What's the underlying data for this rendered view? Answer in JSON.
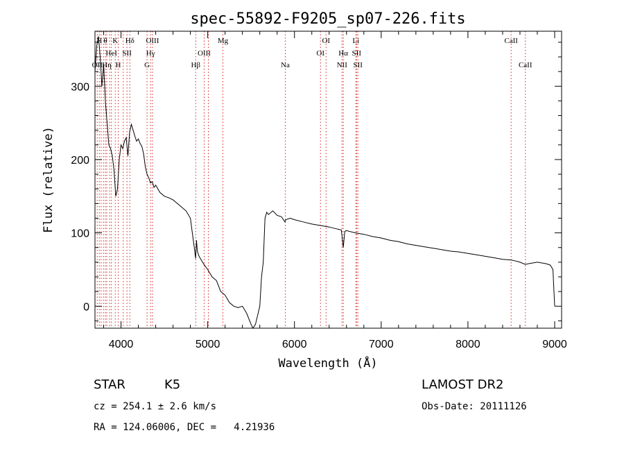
{
  "chart_data": {
    "type": "line",
    "title": "spec-55892-F9205_sp07-226.fits",
    "xlabel": "Wavelength (Å)",
    "ylabel": "Flux (relative)",
    "xlim": [
      3700,
      9080
    ],
    "ylim": [
      -30,
      375
    ],
    "xticks": [
      4000,
      5000,
      6000,
      7000,
      8000,
      9000
    ],
    "yticks": [
      0,
      100,
      200,
      300
    ],
    "grid": false,
    "series": [
      {
        "x": [
          3700,
          3720,
          3740,
          3760,
          3780,
          3800,
          3820,
          3840,
          3860,
          3880,
          3900,
          3920,
          3940,
          3960,
          3980,
          4000,
          4020,
          4040,
          4060,
          4080,
          4100,
          4120,
          4140,
          4160,
          4180,
          4200,
          4220,
          4240,
          4260,
          4280,
          4300,
          4320,
          4340,
          4360,
          4380,
          4400,
          4450,
          4500,
          4550,
          4600,
          4650,
          4700,
          4750,
          4800,
          4850,
          4860,
          4870,
          4880,
          4900,
          4950,
          5000,
          5050,
          5100,
          5150,
          5200,
          5250,
          5300,
          5350,
          5400,
          5450,
          5500,
          5520,
          5550,
          5580,
          5600,
          5620,
          5640,
          5660,
          5680,
          5700,
          5750,
          5800,
          5850,
          5890,
          5900,
          5950,
          6000,
          6100,
          6200,
          6300,
          6400,
          6500,
          6540,
          6563,
          6580,
          6600,
          6700,
          6800,
          6900,
          7000,
          7100,
          7200,
          7300,
          7400,
          7500,
          7600,
          7700,
          7800,
          7900,
          8000,
          8100,
          8200,
          8300,
          8400,
          8500,
          8540,
          8600,
          8662,
          8700,
          8800,
          8900,
          8950,
          8980,
          9000
        ],
        "y": [
          320,
          355,
          368,
          340,
          300,
          330,
          280,
          250,
          220,
          215,
          205,
          185,
          150,
          160,
          200,
          220,
          215,
          225,
          230,
          205,
          238,
          248,
          240,
          232,
          225,
          228,
          222,
          218,
          208,
          190,
          180,
          175,
          168,
          170,
          162,
          165,
          155,
          150,
          148,
          145,
          140,
          135,
          130,
          120,
          75,
          65,
          90,
          75,
          68,
          58,
          50,
          40,
          35,
          20,
          15,
          5,
          0,
          -2,
          0,
          -10,
          -25,
          -30,
          -25,
          -10,
          0,
          40,
          60,
          120,
          128,
          125,
          130,
          124,
          122,
          115,
          118,
          120,
          118,
          115,
          112,
          110,
          108,
          105,
          104,
          80,
          102,
          103,
          100,
          98,
          95,
          93,
          90,
          88,
          85,
          83,
          81,
          79,
          77,
          75,
          74,
          72,
          70,
          68,
          66,
          64,
          63,
          62,
          60,
          57,
          58,
          60,
          58,
          56,
          50,
          0
        ]
      }
    ],
    "line_markers": [
      {
        "x": 3726,
        "label": "OII",
        "row": 3
      },
      {
        "x": 3750,
        "label": "H",
        "row": 1
      },
      {
        "x": 3771,
        "label": "",
        "row": 0
      },
      {
        "x": 3798,
        "label": "",
        "row": 0
      },
      {
        "x": 3820,
        "label": "θ",
        "row": 1
      },
      {
        "x": 3836,
        "label": "Hη",
        "row": 3
      },
      {
        "x": 3869,
        "label": "",
        "row": 0
      },
      {
        "x": 3889,
        "label": "HeI",
        "row": 2
      },
      {
        "x": 3934,
        "label": "K",
        "row": 1
      },
      {
        "x": 3968,
        "label": "H",
        "row": 3
      },
      {
        "x": 4026,
        "label": "",
        "row": 0
      },
      {
        "x": 4069,
        "label": "SII",
        "row": 2
      },
      {
        "x": 4102,
        "label": "Hδ",
        "row": 1
      },
      {
        "x": 4300,
        "label": "G",
        "row": 3
      },
      {
        "x": 4341,
        "label": "Hγ",
        "row": 2
      },
      {
        "x": 4363,
        "label": "OIII",
        "row": 1
      },
      {
        "x": 4861,
        "label": "Hβ",
        "row": 3
      },
      {
        "x": 4959,
        "label": "OIII",
        "row": 2
      },
      {
        "x": 5007,
        "label": "",
        "row": 0
      },
      {
        "x": 5175,
        "label": "Mg",
        "row": 1
      },
      {
        "x": 5894,
        "label": "Na",
        "row": 3
      },
      {
        "x": 6300,
        "label": "OI",
        "row": 2
      },
      {
        "x": 6364,
        "label": "OI",
        "row": 1
      },
      {
        "x": 6548,
        "label": "NII",
        "row": 3
      },
      {
        "x": 6563,
        "label": "Hα",
        "row": 2
      },
      {
        "x": 6708,
        "label": "Li",
        "row": 1
      },
      {
        "x": 6716,
        "label": "SII",
        "row": 2
      },
      {
        "x": 6731,
        "label": "SII",
        "row": 3
      },
      {
        "x": 8498,
        "label": "CaII",
        "row": 1
      },
      {
        "x": 8662,
        "label": "CaII",
        "row": 3
      }
    ]
  },
  "info": {
    "object_class": "STAR",
    "subclass": "K5",
    "redshift": "cz = 254.1 ± 2.6 km/s",
    "coordinates": "RA = 124.06006, DEC =   4.21936",
    "survey": "LAMOST DR2",
    "obs_date": "Obs-Date: 20111126"
  },
  "colors": {
    "axis": "#000000",
    "spectrum": "#000000",
    "line_marker": "#d62020"
  }
}
